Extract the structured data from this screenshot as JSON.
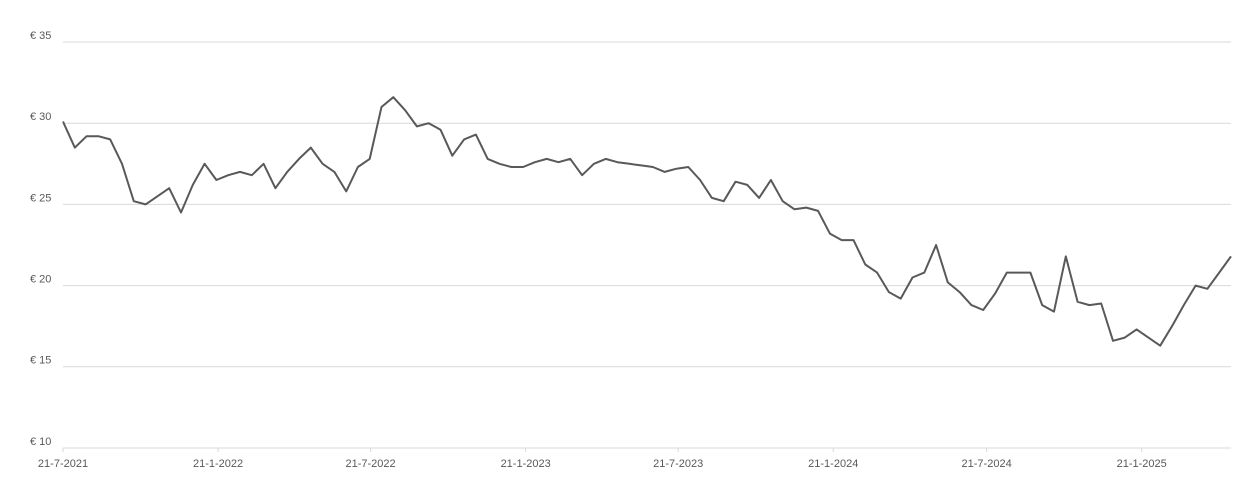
{
  "chart_data": {
    "type": "line",
    "x": [
      "21-7-2021",
      "4-8-2021",
      "18-8-2021",
      "1-9-2021",
      "15-9-2021",
      "29-9-2021",
      "13-10-2021",
      "27-10-2021",
      "10-11-2021",
      "24-11-2021",
      "8-12-2021",
      "22-12-2021",
      "5-1-2022",
      "19-1-2022",
      "2-2-2022",
      "16-2-2022",
      "2-3-2022",
      "16-3-2022",
      "30-3-2022",
      "13-4-2022",
      "27-4-2022",
      "11-5-2022",
      "25-5-2022",
      "8-6-2022",
      "22-6-2022",
      "6-7-2022",
      "20-7-2022",
      "3-8-2022",
      "17-8-2022",
      "31-8-2022",
      "14-9-2022",
      "28-9-2022",
      "12-10-2022",
      "26-10-2022",
      "9-11-2022",
      "23-11-2022",
      "7-12-2022",
      "21-12-2022",
      "4-1-2023",
      "18-1-2023",
      "1-2-2023",
      "15-2-2023",
      "1-3-2023",
      "15-3-2023",
      "29-3-2023",
      "12-4-2023",
      "26-4-2023",
      "10-5-2023",
      "24-5-2023",
      "7-6-2023",
      "21-6-2023",
      "5-7-2023",
      "19-7-2023",
      "2-8-2023",
      "16-8-2023",
      "30-8-2023",
      "13-9-2023",
      "27-9-2023",
      "11-10-2023",
      "25-10-2023",
      "8-11-2023",
      "22-11-2023",
      "6-12-2023",
      "20-12-2023",
      "3-1-2024",
      "17-1-2024",
      "31-1-2024",
      "14-2-2024",
      "28-2-2024",
      "13-3-2024",
      "27-3-2024",
      "10-4-2024",
      "24-4-2024",
      "8-5-2024",
      "22-5-2024",
      "5-6-2024",
      "19-6-2024",
      "3-7-2024",
      "17-7-2024",
      "31-7-2024",
      "14-8-2024",
      "28-8-2024",
      "11-9-2024",
      "25-9-2024",
      "9-10-2024",
      "23-10-2024",
      "6-11-2024",
      "20-11-2024",
      "4-12-2024",
      "18-12-2024",
      "1-1-2025",
      "15-1-2025",
      "29-1-2025",
      "12-2-2025",
      "26-2-2025",
      "12-3-2025",
      "26-3-2025",
      "9-4-2025",
      "23-4-2025",
      "7-5-2025"
    ],
    "series": [
      {
        "color": "#595959",
        "values": [
          30.1,
          28.5,
          29.2,
          29.2,
          29.0,
          27.5,
          25.2,
          25.0,
          25.5,
          26.0,
          24.5,
          26.2,
          27.5,
          26.5,
          26.8,
          27,
          26.8,
          27.5,
          26,
          27,
          27.8,
          28.5,
          27.5,
          27,
          25.8,
          27.3,
          27.8,
          31,
          31.6,
          30.8,
          29.8,
          30,
          29.6,
          28,
          29,
          29.3,
          27.8,
          27.5,
          27.3,
          27.3,
          27.6,
          27.8,
          27.6,
          27.8,
          26.8,
          27.5,
          27.8,
          27.6,
          27.5,
          27.4,
          27.3,
          27.0,
          27.2,
          27.3,
          26.5,
          25.4,
          25.2,
          26.4,
          26.2,
          25.4,
          26.5,
          25.2,
          24.7,
          24.8,
          24.6,
          23.2,
          22.8,
          22.8,
          21.3,
          20.8,
          19.6,
          19.2,
          20.5,
          20.8,
          22.5,
          20.2,
          19.6,
          18.8,
          18.5,
          19.5,
          20.8,
          20.8,
          20.8,
          18.8,
          18.4,
          21.8,
          19.0,
          18.8,
          18.9,
          16.6,
          16.8,
          17.3,
          16.8,
          16.3,
          17.5,
          18.8,
          20.0,
          19.8,
          20.8,
          21.8
        ]
      }
    ],
    "xlim": [
      "21-7-2021",
      "7-5-2025"
    ],
    "xticks": [
      "21-7-2021",
      "21-1-2022",
      "21-7-2022",
      "21-1-2023",
      "21-7-2023",
      "21-1-2024",
      "21-7-2024",
      "21-1-2025"
    ],
    "ylim": [
      10,
      35
    ],
    "yticks": [
      {
        "value": 10,
        "label": "€ 10"
      },
      {
        "value": 15,
        "label": "€ 15"
      },
      {
        "value": 20,
        "label": "€ 20"
      },
      {
        "value": 25,
        "label": "€ 25"
      },
      {
        "value": 30,
        "label": "€ 30"
      },
      {
        "value": 35,
        "label": "€ 35"
      }
    ],
    "grid": true
  }
}
